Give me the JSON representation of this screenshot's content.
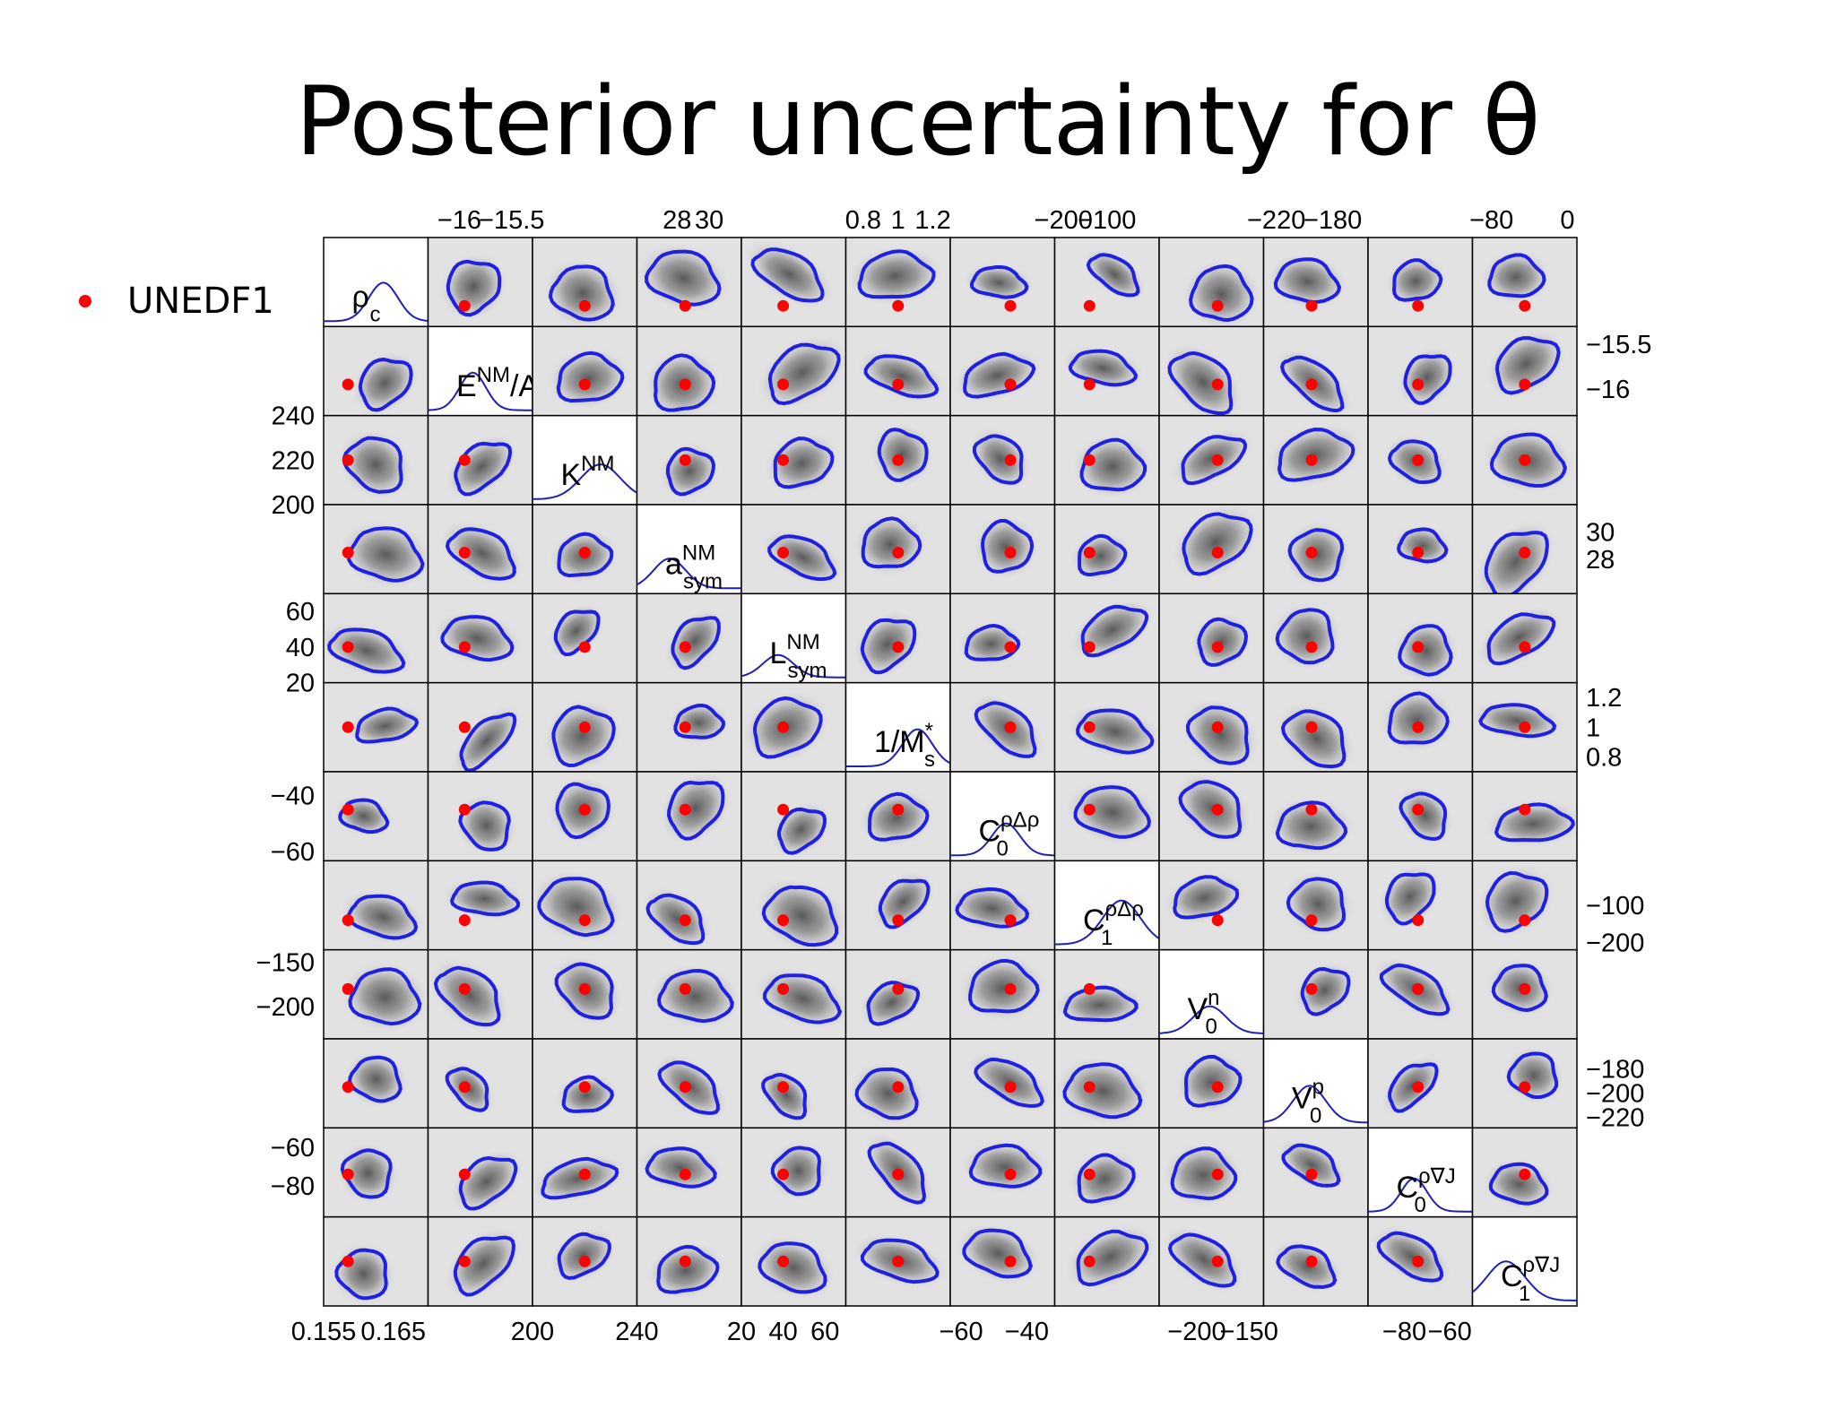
{
  "page": {
    "title": "Posterior uncertainty for θ",
    "legend": {
      "marker_color": "#ff0000",
      "label": "UNEDF1"
    }
  },
  "chart_data": {
    "type": "scatter",
    "subtype": "pairwise posterior density matrix (corner plot)",
    "colors": {
      "density": "#333333",
      "contour": "#2020e0",
      "point": "#ff0000",
      "diag_curve": "#2020b0",
      "panel_border": "#000000"
    },
    "parameters": [
      {
        "label_main": "ρ",
        "label_sub": "c",
        "label_sup": "",
        "label_tail": "",
        "range": [
          0.155,
          0.17
        ],
        "ref_value": 0.1585,
        "bottom_ticks": [
          {
            "v": 0.155,
            "t": "0.155"
          },
          {
            "v": 0.165,
            "t": "0.165"
          }
        ],
        "top_ticks": [],
        "left_ticks": [],
        "right_ticks": []
      },
      {
        "label_main": "E",
        "label_sub": "",
        "label_sup": "NM",
        "label_tail": "/A",
        "range": [
          -16.3,
          -15.3
        ],
        "ref_value": -15.95,
        "bottom_ticks": [],
        "top_ticks": [
          {
            "v": -16,
            "t": "−16"
          },
          {
            "v": -15.5,
            "t": "−15.5"
          }
        ],
        "left_ticks": [],
        "right_ticks": [
          {
            "v": -15.5,
            "t": "−15.5"
          },
          {
            "v": -16,
            "t": "−16"
          }
        ]
      },
      {
        "label_main": "K",
        "label_sub": "",
        "label_sup": "NM",
        "label_tail": "",
        "range": [
          200,
          240
        ],
        "ref_value": 220,
        "bottom_ticks": [
          {
            "v": 200,
            "t": "200"
          },
          {
            "v": 240,
            "t": "240"
          }
        ],
        "top_ticks": [],
        "left_ticks": [
          {
            "v": 240,
            "t": "240"
          },
          {
            "v": 220,
            "t": "220"
          },
          {
            "v": 200,
            "t": "200"
          }
        ],
        "right_ticks": []
      },
      {
        "label_main": "a",
        "label_sub": "sym",
        "label_sup": "NM",
        "label_tail": "",
        "range": [
          25.5,
          32
        ],
        "ref_value": 28.5,
        "bottom_ticks": [],
        "top_ticks": [
          {
            "v": 28,
            "t": "28"
          },
          {
            "v": 30,
            "t": "30"
          }
        ],
        "left_ticks": [],
        "right_ticks": [
          {
            "v": 30,
            "t": "30"
          },
          {
            "v": 28,
            "t": "28"
          }
        ]
      },
      {
        "label_main": "L",
        "label_sub": "sym",
        "label_sup": "NM",
        "label_tail": "",
        "range": [
          20,
          70
        ],
        "ref_value": 40,
        "bottom_ticks": [
          {
            "v": 20,
            "t": "20"
          },
          {
            "v": 40,
            "t": "40"
          },
          {
            "v": 60,
            "t": "60"
          }
        ],
        "top_ticks": [],
        "left_ticks": [
          {
            "v": 60,
            "t": "60"
          },
          {
            "v": 40,
            "t": "40"
          },
          {
            "v": 20,
            "t": "20"
          }
        ],
        "right_ticks": []
      },
      {
        "label_main": "1/M",
        "label_sub": "s",
        "label_sup": "*",
        "label_tail": "",
        "range": [
          0.7,
          1.3
        ],
        "ref_value": 1.0,
        "bottom_ticks": [],
        "top_ticks": [
          {
            "v": 0.8,
            "t": "0.8"
          },
          {
            "v": 1.0,
            "t": "1"
          },
          {
            "v": 1.2,
            "t": "1.2"
          }
        ],
        "left_ticks": [],
        "right_ticks": [
          {
            "v": 1.2,
            "t": "1.2"
          },
          {
            "v": 1.0,
            "t": "1"
          },
          {
            "v": 0.8,
            "t": "0.8"
          }
        ]
      },
      {
        "label_main": "C",
        "label_sub": "0",
        "label_sup": "ρΔρ",
        "label_tail": "",
        "range": [
          -63.3,
          -31.5
        ],
        "ref_value": -45,
        "bottom_ticks": [
          {
            "v": -60,
            "t": "−60"
          },
          {
            "v": -40,
            "t": "−40"
          }
        ],
        "top_ticks": [],
        "left_ticks": [
          {
            "v": -40,
            "t": "−40"
          },
          {
            "v": -60,
            "t": "−60"
          }
        ],
        "right_ticks": []
      },
      {
        "label_main": "C",
        "label_sub": "1",
        "label_sup": "ρΔρ",
        "label_tail": "",
        "range": [
          -220,
          20
        ],
        "ref_value": -140,
        "bottom_ticks": [],
        "top_ticks": [
          {
            "v": -200,
            "t": "−200"
          },
          {
            "v": -100,
            "t": "−100"
          }
        ],
        "left_ticks": [],
        "right_ticks": [
          {
            "v": -100,
            "t": "−100"
          },
          {
            "v": -200,
            "t": "−200"
          }
        ]
      },
      {
        "label_main": "V",
        "label_sub": "0",
        "label_sup": "n",
        "label_tail": "",
        "range": [
          -236,
          -136
        ],
        "ref_value": -180,
        "bottom_ticks": [
          {
            "v": -200,
            "t": "−200"
          },
          {
            "v": -150,
            "t": "−150"
          }
        ],
        "top_ticks": [],
        "left_ticks": [
          {
            "v": -150,
            "t": "−150"
          },
          {
            "v": -200,
            "t": "−200"
          }
        ],
        "right_ticks": []
      },
      {
        "label_main": "V",
        "label_sub": "0",
        "label_sup": "p",
        "label_tail": "",
        "range": [
          -229,
          -155
        ],
        "ref_value": -195,
        "bottom_ticks": [],
        "top_ticks": [
          {
            "v": -220,
            "t": "−220"
          },
          {
            "v": -180,
            "t": "−180"
          }
        ],
        "left_ticks": [],
        "right_ticks": [
          {
            "v": -180,
            "t": "−180"
          },
          {
            "v": -200,
            "t": "−200"
          },
          {
            "v": -220,
            "t": "−220"
          }
        ]
      },
      {
        "label_main": "C",
        "label_sub": "0",
        "label_sup": "ρ∇J",
        "label_tail": "",
        "range": [
          -96,
          -50
        ],
        "ref_value": -74,
        "bottom_ticks": [
          {
            "v": -80,
            "t": "−80"
          },
          {
            "v": -60,
            "t": "−60"
          }
        ],
        "top_ticks": [],
        "left_ticks": [
          {
            "v": -60,
            "t": "−60"
          },
          {
            "v": -80,
            "t": "−80"
          }
        ],
        "right_ticks": []
      },
      {
        "label_main": "C",
        "label_sub": "1",
        "label_sup": "ρ∇J",
        "label_tail": "",
        "range": [
          -100,
          10
        ],
        "ref_value": -45,
        "bottom_ticks": [],
        "top_ticks": [
          {
            "v": -80,
            "t": "−80"
          },
          {
            "v": 0,
            "t": "0"
          }
        ],
        "left_ticks": [],
        "right_ticks": []
      }
    ]
  }
}
